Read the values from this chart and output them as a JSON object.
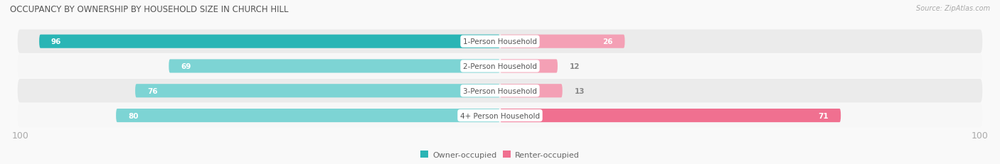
{
  "title": "OCCUPANCY BY OWNERSHIP BY HOUSEHOLD SIZE IN CHURCH HILL",
  "source": "Source: ZipAtlas.com",
  "categories": [
    "1-Person Household",
    "2-Person Household",
    "3-Person Household",
    "4+ Person Household"
  ],
  "owner_values": [
    96,
    69,
    76,
    80
  ],
  "renter_values": [
    26,
    12,
    13,
    71
  ],
  "max_scale": 100,
  "owner_colors": [
    "#2ab5b5",
    "#7dd4d4",
    "#7dd4d4",
    "#7dd4d4"
  ],
  "renter_colors": [
    "#f4a0b5",
    "#f4a0b5",
    "#f4a0b5",
    "#f07090"
  ],
  "row_bg_colors": [
    "#ebebeb",
    "#f7f7f7",
    "#ebebeb",
    "#f7f7f7"
  ],
  "label_color": "#ffffff",
  "category_label_color": "#555555",
  "axis_label_color": "#aaaaaa",
  "title_color": "#555555",
  "legend_owner": "Owner-occupied",
  "legend_renter": "Renter-occupied",
  "owner_legend_color": "#2ab5b5",
  "renter_legend_color": "#f07090",
  "fig_width": 14.06,
  "fig_height": 2.32,
  "dpi": 100
}
